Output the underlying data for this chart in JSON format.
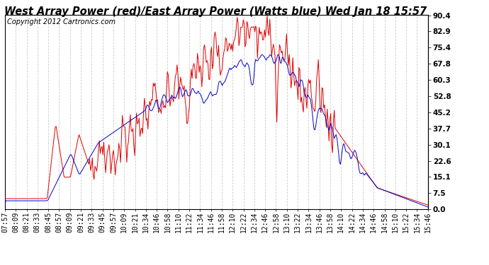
{
  "title": "West Array Power (red)/East Array Power (Watts blue) Wed Jan 18 15:57",
  "copyright": "Copyright 2012 Cartronics.com",
  "yticks": [
    0.0,
    7.5,
    15.1,
    22.6,
    30.1,
    37.7,
    45.2,
    52.8,
    60.3,
    67.8,
    75.4,
    82.9,
    90.4
  ],
  "xtick_labels": [
    "07:57",
    "08:09",
    "08:21",
    "08:33",
    "08:45",
    "08:57",
    "09:09",
    "09:21",
    "09:33",
    "09:45",
    "09:57",
    "10:09",
    "10:21",
    "10:34",
    "10:46",
    "10:58",
    "11:10",
    "11:22",
    "11:34",
    "11:46",
    "11:58",
    "12:10",
    "12:22",
    "12:34",
    "12:46",
    "12:58",
    "13:10",
    "13:22",
    "13:34",
    "13:46",
    "13:58",
    "14:10",
    "14:22",
    "14:34",
    "14:46",
    "14:58",
    "15:10",
    "15:22",
    "15:34",
    "15:46"
  ],
  "bg_color": "#ffffff",
  "plot_bg_color": "#ffffff",
  "grid_color": "#cccccc",
  "red_color": "#dd0000",
  "blue_color": "#0000cc",
  "title_fontsize": 10.5,
  "copyright_fontsize": 7,
  "tick_fontsize": 7,
  "ymin": 0.0,
  "ymax": 90.4
}
